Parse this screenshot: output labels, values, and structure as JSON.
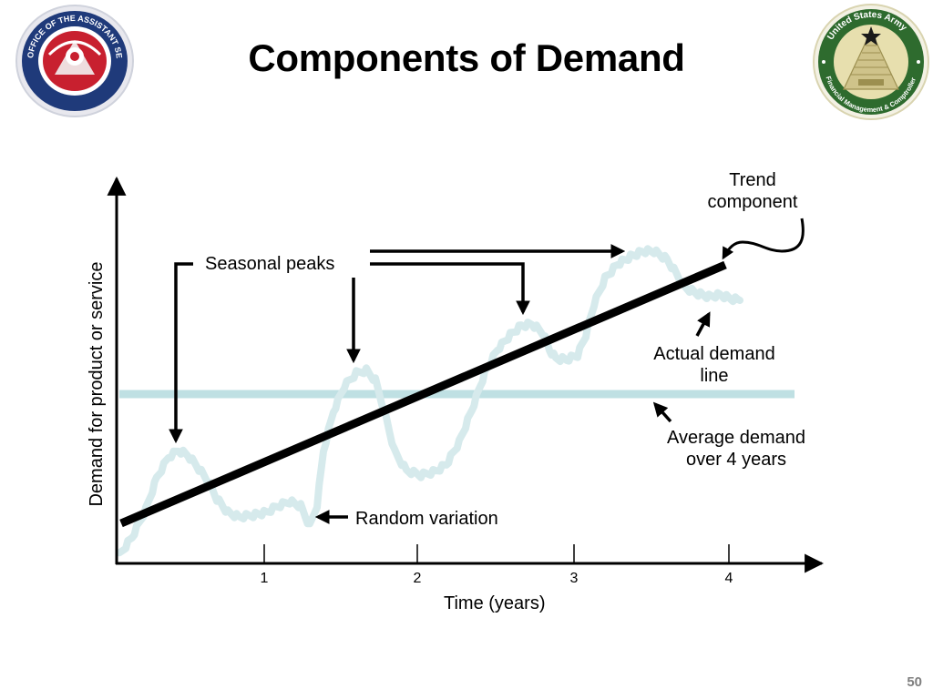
{
  "slide": {
    "title": "Components of Demand",
    "page_number": "50"
  },
  "logos": {
    "left": {
      "name": "office-of-the-assistant-secretary-of-the-army-seal",
      "text": "OFFICE OF THE ASSISTANT SECRETARY OF THE ARMY",
      "ring_color": "#1f3a7a",
      "center_color": "#c8202f"
    },
    "right": {
      "name": "us-army-financial-management-comptroller-seal",
      "text_top": "United States Army",
      "text_bottom": "Financial Management & Comptroller",
      "ring_color": "#2e6b2e",
      "center_color": "#e7dfae"
    }
  },
  "diagram": {
    "y_axis_label": "Demand for product or service",
    "x_axis_label": "Time (years)",
    "x_ticks": [
      "1",
      "2",
      "3",
      "4"
    ],
    "annotations": {
      "trend_line1": "Trend",
      "trend_line2": "component",
      "seasonal_peaks": "Seasonal peaks",
      "actual_line1": "Actual demand",
      "actual_line2": "line",
      "average_line1": "Average demand",
      "average_line2": "over 4 years",
      "random_variation": "Random variation"
    },
    "colors": {
      "trend": "#000000",
      "actual_demand": "#d6eaec",
      "average_demand": "#bfe0e3",
      "axes": "#000000"
    }
  }
}
